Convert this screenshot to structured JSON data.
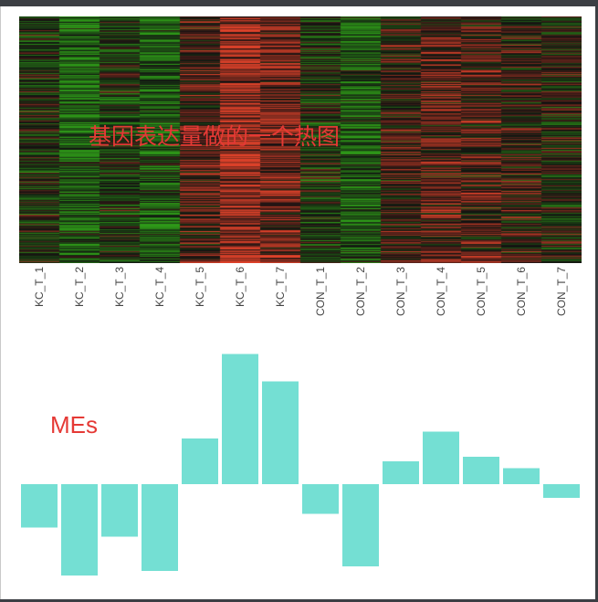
{
  "heatmap": {
    "title": "基因表达量做的一个热图",
    "samples": [
      "KC_T_1",
      "KC_T_2",
      "KC_T_3",
      "KC_T_4",
      "KC_T_5",
      "KC_T_6",
      "KC_T_7",
      "CON_T_1",
      "CON_T_2",
      "CON_T_3",
      "CON_T_4",
      "CON_T_5",
      "CON_T_6",
      "CON_T_7"
    ],
    "column_bias": [
      0.15,
      0.55,
      0.2,
      0.5,
      -0.25,
      -0.65,
      -0.45,
      0.15,
      0.45,
      -0.15,
      -0.3,
      -0.25,
      -0.1,
      0.05
    ],
    "colors": {
      "low": "#2e9a18",
      "mid": "#111111",
      "high": "#e0422a"
    }
  },
  "chart_data": {
    "type": "bar",
    "title": "MEs",
    "categories": [
      "KC_T_1",
      "KC_T_2",
      "KC_T_3",
      "KC_T_4",
      "KC_T_5",
      "KC_T_6",
      "KC_T_7",
      "CON_T_1",
      "CON_T_2",
      "CON_T_3",
      "CON_T_4",
      "CON_T_5",
      "CON_T_6",
      "CON_T_7"
    ],
    "values": [
      -0.19,
      -0.4,
      -0.23,
      -0.38,
      0.2,
      0.57,
      0.45,
      -0.13,
      -0.36,
      0.1,
      0.23,
      0.12,
      0.07,
      -0.06
    ],
    "ylim": [
      -0.42,
      0.6
    ],
    "color": "#74dfd3"
  }
}
